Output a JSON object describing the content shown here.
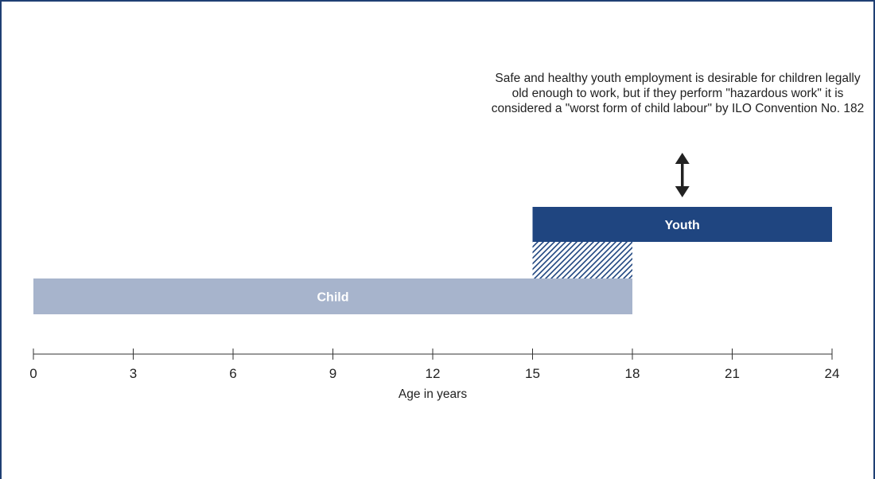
{
  "annotation": "Safe and healthy youth employment is desirable for children legally old enough to work, but if they perform \"hazardous work\" it is considered a \"worst form of child labour\" by ILO Convention No. 182",
  "colors": {
    "child_bar": "#a7b4cc",
    "youth_bar": "#1f4580",
    "hatch": "#1f4580",
    "axis": "#333333",
    "frame": "#1f3f73"
  },
  "chart_data": {
    "type": "timeline",
    "title": "",
    "xlabel": "Age in years",
    "xlim": [
      0,
      24
    ],
    "ticks": [
      0,
      3,
      6,
      9,
      12,
      15,
      18,
      21,
      24
    ],
    "bars": [
      {
        "label": "Child",
        "start": 0,
        "end": 18,
        "color": "#a7b4cc"
      },
      {
        "label": "Youth",
        "start": 15,
        "end": 24,
        "color": "#1f4580"
      }
    ],
    "overlap": {
      "start": 15,
      "end": 18,
      "pattern": "hatched"
    },
    "arrow": {
      "at": 19.5,
      "direction": "double-vertical",
      "links": "annotation-to-youth"
    }
  }
}
